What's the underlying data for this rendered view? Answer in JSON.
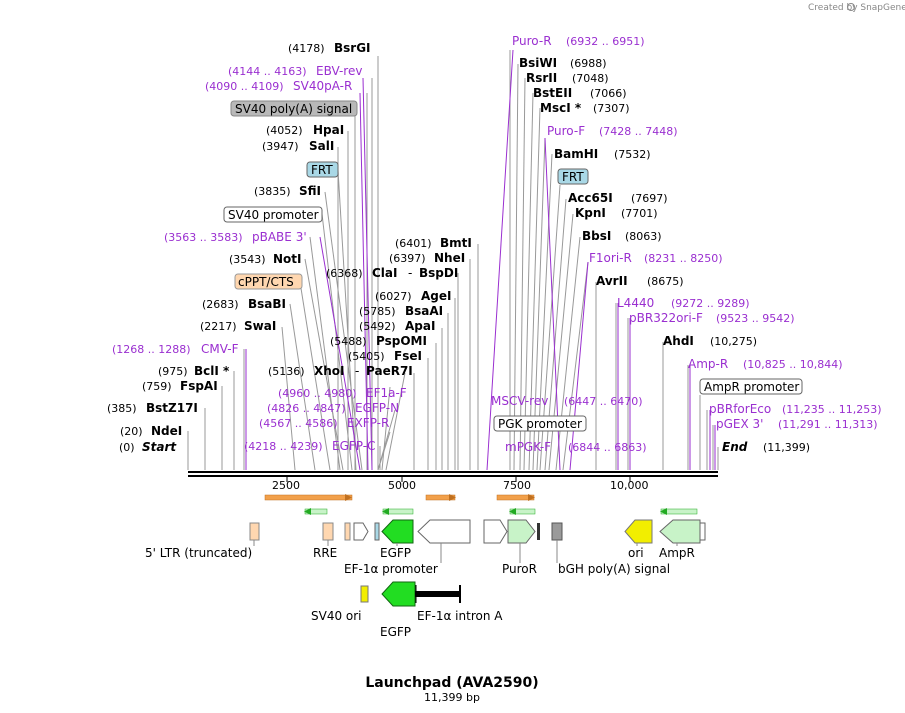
{
  "credit": "Created by SnapGene",
  "title": "Launchpad (AVA2590)",
  "subtitle": "11,399 bp",
  "ticks": [
    "2500",
    "5000",
    "7500",
    "10,000"
  ],
  "colors": {
    "primer": "#9a2fd0",
    "egfp": "#22dd22",
    "ori": "#f2ee00",
    "ltr": "#ffd7b0",
    "ampr": "#c8f3c8",
    "puror": "#c8f3c8",
    "polya": "#9a9a9a",
    "primer_arrow_bind": "#f2a04a",
    "primer_arrow_green": "#22aa22"
  },
  "map_labels": {
    "bsrgi_num": "(4178)",
    "bsrgi": "BsrGI",
    "ebvrev_num": "(4144 .. 4163)",
    "ebvrev": "EBV-rev",
    "sv40pa_num": "(4090 .. 4109)",
    "sv40pa": "SV40pA-R",
    "sv40polya": "SV40 poly(A) signal",
    "hpai_num": "(4052)",
    "hpai": "HpaI",
    "sali_num": "(3947)",
    "sali": "SalI",
    "frt1": "FRT",
    "sfii_num": "(3835)",
    "sfii": "SfiI",
    "sv40prom": "SV40 promoter",
    "pbabe_num": "(3563 .. 3583)",
    "pbabe": "pBABE 3'",
    "noti_num": "(3543)",
    "noti": "NotI",
    "cppt": "cPPT/CTS",
    "bsabi_num": "(2683)",
    "bsabi": "BsaBI",
    "swai_num": "(2217)",
    "swai": "SwaI",
    "cmvf_num": "(1268 .. 1288)",
    "cmvf": "CMV-F",
    "bcli_num": "(975)",
    "bcli": "BclI *",
    "fspai_num": "(759)",
    "fspai": "FspAI",
    "bstz_num": "(385)",
    "bstz": "BstZ17I",
    "ndei_num": "(20)",
    "ndei": "NdeI",
    "start_num": "(0)",
    "start": "Start",
    "bmti_num": "(6401)",
    "bmti": "BmtI",
    "nhei_num": "(6397)",
    "nhei": "NheI",
    "clai_num": "(6368)",
    "clai": "ClaI",
    "bspdi": "BspDI",
    "agei_num": "(6027)",
    "agei": "AgeI",
    "bsaai_num": "(5785)",
    "bsaai": "BsaAI",
    "apai_num": "(5492)",
    "apai": "ApaI",
    "pspomi_num": "(5488)",
    "pspomi": "PspOMI",
    "fsei_num": "(5405)",
    "fsei": "FseI",
    "xhoi_num": "(5136)",
    "xhoi": "XhoI",
    "paer7i": "PaeR7I",
    "ef1af_num": "(4960 .. 4980)",
    "ef1af": "EF1a-F",
    "egfpn_num": "(4826 .. 4847)",
    "egfpn": "EGFP-N",
    "exfpr_num": "(4567 .. 4586)",
    "exfpr": "EXFP-R",
    "egfpc_num": "(4218 .. 4239)",
    "egfpc": "EGFP-C",
    "puror_p": "Puro-R",
    "puror_p_num": "(6932 .. 6951)",
    "bsiwi": "BsiWI",
    "bsiwi_num": "(6988)",
    "rsrii": "RsrII",
    "rsrii_num": "(7048)",
    "bsteii": "BstEII",
    "bsteii_num": "(7066)",
    "msci": "MscI *",
    "msci_num": "(7307)",
    "purof": "Puro-F",
    "purof_num": "(7428 .. 7448)",
    "bamhi": "BamHI",
    "bamhi_num": "(7532)",
    "frt2": "FRT",
    "acc65i": "Acc65I",
    "acc65i_num": "(7697)",
    "kpni": "KpnI",
    "kpni_num": "(7701)",
    "bbsi": "BbsI",
    "bbsi_num": "(8063)",
    "f1ori": "F1ori-R",
    "f1ori_num": "(8231 .. 8250)",
    "avrii": "AvrII",
    "avrii_num": "(8675)",
    "l4440": "L4440",
    "l4440_num": "(9272 .. 9289)",
    "pbr322": "pBR322ori-F",
    "pbr322_num": "(9523 .. 9542)",
    "ahdi": "AhdI",
    "ahdi_num": "(10,275)",
    "ampr_p": "Amp-R",
    "ampr_p_num": "(10,825 .. 10,844)",
    "amprprom": "AmpR promoter",
    "pbrforeco": "pBRforEco",
    "pbrforeco_num": "(11,235 .. 11,253)",
    "pgex": "pGEX 3'",
    "pgex_num": "(11,291 .. 11,313)",
    "end": "End",
    "end_num": "(11,399)",
    "mscvrev": "MSCV-rev",
    "mscvrev_num": "(6447 .. 6470)",
    "pgkprom": "PGK promoter",
    "mpgkf": "mPGK-F",
    "mpgkf_num": "(6844 .. 6863)"
  },
  "features": {
    "ltr": "5' LTR (truncated)",
    "rre": "RRE",
    "egfp1": "EGFP",
    "ef1prom": "EF-1α promoter",
    "puror": "PuroR",
    "bgh": "bGH poly(A) signal",
    "ori": "ori",
    "ampr": "AmpR",
    "sv40ori": "SV40 ori",
    "egfp2": "EGFP",
    "ef1intron": "EF-1α intron A"
  }
}
